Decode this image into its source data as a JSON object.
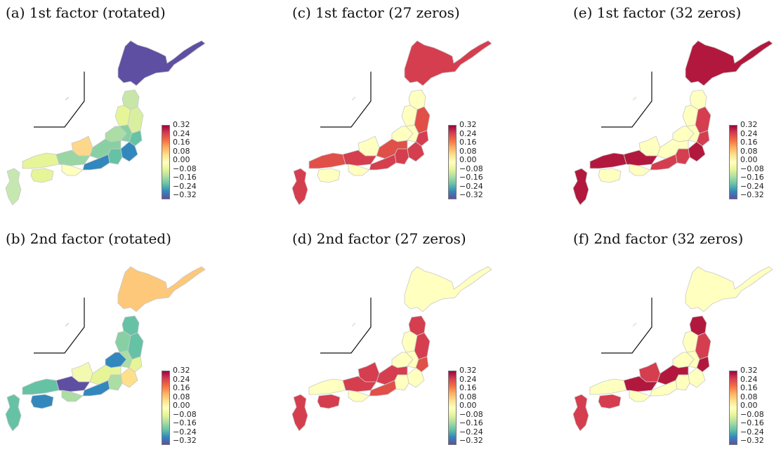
{
  "colorbar": {
    "ticks": [
      "0.32",
      "0.24",
      "0.16",
      "0.08",
      "0.00",
      "−0.08",
      "−0.16",
      "−0.24",
      "−0.32"
    ],
    "colors": [
      "#9e0142",
      "#d53e4f",
      "#f46d43",
      "#fdae61",
      "#fee08b",
      "#ffffbf",
      "#e6f598",
      "#abdda4",
      "#66c2a5",
      "#3288bd",
      "#5e4fa2"
    ]
  },
  "panels": [
    {
      "id": "a",
      "title": "(a) 1st factor (rotated)",
      "scheme": "rotated1"
    },
    {
      "id": "b",
      "title": "(b) 2nd factor (rotated)",
      "scheme": "rotated2"
    },
    {
      "id": "c",
      "title": "(c) 1st factor (27 zeros)",
      "scheme": "zeros"
    },
    {
      "id": "d",
      "title": "(d) 2nd factor (27 zeros)",
      "scheme": "zeros"
    },
    {
      "id": "e",
      "title": "(e) 1st factor (32 zeros)",
      "scheme": "zeros"
    },
    {
      "id": "f",
      "title": "(f) 2nd factor (32 zeros)",
      "scheme": "zeros"
    }
  ]
}
